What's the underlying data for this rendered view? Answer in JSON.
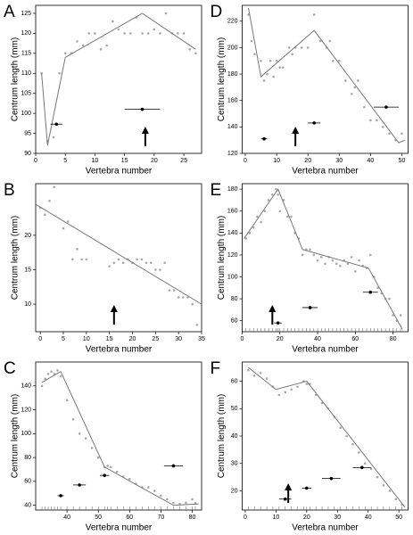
{
  "chart_data": [
    {
      "type": "segmented",
      "panel": "A",
      "xlabel": "Vertebra number",
      "ylabel": "Centrum length (mm)",
      "xlim": [
        0,
        28
      ],
      "xticks": [
        0,
        5,
        10,
        15,
        20,
        25
      ],
      "ylim": [
        90,
        127
      ],
      "yticks": [
        90,
        95,
        100,
        105,
        110,
        115,
        120,
        125
      ],
      "point_color": "#a8a8a8",
      "line_color": "#777777",
      "rug": false,
      "points": {
        "x": [
          1,
          2,
          3,
          4,
          5,
          6,
          7,
          8,
          9,
          10,
          11,
          12,
          13,
          14,
          15,
          16,
          17,
          18,
          19,
          20,
          21,
          22,
          23,
          24,
          25,
          26,
          27
        ],
        "y": [
          110,
          93,
          94,
          110,
          115,
          115,
          118,
          117,
          120,
          120,
          116,
          117,
          123,
          121,
          120,
          120,
          124,
          120,
          120,
          121,
          120,
          125,
          120,
          120,
          120,
          116,
          115
        ]
      },
      "fit": {
        "x": [
          1,
          2,
          5,
          18,
          27
        ],
        "y": [
          110,
          92,
          114,
          125,
          116
        ]
      },
      "breakpoints": [
        {
          "x": 3.5,
          "y": 97.3,
          "err": 1
        },
        {
          "x": 18,
          "y": 101,
          "err": 3
        }
      ],
      "arrow_x": 18.5
    },
    {
      "type": "segmented",
      "panel": "D",
      "xlabel": "Vertebra number",
      "ylabel": "Centrum length (mm)",
      "xlim": [
        -1,
        52
      ],
      "xticks": [
        0,
        10,
        20,
        30,
        40,
        50
      ],
      "ylim": [
        120,
        232
      ],
      "yticks": [
        120,
        140,
        160,
        180,
        200,
        220
      ],
      "point_color": "#a8a8a8",
      "line_color": "#777777",
      "rug": false,
      "points": {
        "x": [
          1,
          2,
          3,
          5,
          6,
          7,
          8,
          9,
          10,
          11,
          12,
          14,
          15,
          16,
          18,
          20,
          22,
          24,
          26,
          27,
          28,
          30,
          32,
          34,
          35,
          36,
          38,
          40,
          42,
          44,
          46,
          48,
          50
        ],
        "y": [
          225,
          205,
          195,
          190,
          175,
          180,
          190,
          178,
          190,
          185,
          185,
          200,
          195,
          200,
          200,
          200,
          225,
          205,
          200,
          205,
          190,
          190,
          175,
          165,
          170,
          175,
          155,
          145,
          145,
          140,
          135,
          130,
          135
        ]
      },
      "fit": {
        "x": [
          1,
          5,
          22,
          49,
          51
        ],
        "y": [
          230,
          178,
          213,
          128,
          130
        ]
      },
      "breakpoints": [
        {
          "x": 6,
          "y": 131,
          "err": 1
        },
        {
          "x": 22,
          "y": 143,
          "err": 2
        },
        {
          "x": 45,
          "y": 155,
          "err": 4
        }
      ],
      "arrow_x": 16
    },
    {
      "type": "segmented",
      "panel": "B",
      "xlabel": "Vertebra number",
      "ylabel": "Centrum length (mm)",
      "xlim": [
        -1,
        35
      ],
      "xticks": [
        0,
        5,
        10,
        15,
        20,
        25,
        30,
        35
      ],
      "ylim": [
        6,
        27.5
      ],
      "yticks": [
        10,
        15,
        20
      ],
      "point_color": "#a8a8a8",
      "line_color": "#777777",
      "rug": false,
      "points": {
        "x": [
          0,
          1,
          2,
          3,
          5,
          6,
          7,
          8,
          9,
          10,
          15,
          16,
          17,
          18,
          19,
          20,
          21,
          22,
          23,
          24,
          25,
          26,
          27,
          28,
          29,
          30,
          31,
          32,
          33,
          34
        ],
        "y": [
          24,
          23,
          25,
          27,
          21,
          22,
          16.5,
          18,
          16.5,
          16.5,
          15.5,
          16,
          16.5,
          16,
          16.5,
          16,
          16.5,
          16.5,
          16,
          16,
          15,
          15,
          16,
          12,
          12,
          11,
          11,
          11,
          10,
          7
        ]
      },
      "fit": {
        "x": [
          -1,
          35
        ],
        "y": [
          24.5,
          10
        ]
      },
      "breakpoints": [],
      "arrow_x": 16
    },
    {
      "type": "segmented",
      "panel": "E",
      "xlabel": "Vertebra number",
      "ylabel": "Centrum length (mm)",
      "xlim": [
        0,
        88
      ],
      "xticks": [
        0,
        20,
        40,
        60,
        80
      ],
      "ylim": [
        50,
        185
      ],
      "yticks": [
        60,
        80,
        100,
        120,
        140,
        160,
        180
      ],
      "point_color": "#a8a8a8",
      "line_color": "#777777",
      "rug": true,
      "points": {
        "x": [
          2,
          4,
          6,
          8,
          10,
          12,
          14,
          16,
          18,
          19,
          20,
          22,
          24,
          26,
          28,
          30,
          32,
          34,
          36,
          38,
          40,
          42,
          44,
          46,
          48,
          50,
          52,
          54,
          56,
          58,
          60,
          62,
          64,
          66,
          68,
          70,
          72,
          74,
          76,
          78,
          80,
          82,
          84
        ],
        "y": [
          135,
          140,
          145,
          155,
          150,
          160,
          170,
          175,
          180,
          175,
          160,
          170,
          155,
          155,
          140,
          135,
          120,
          125,
          125,
          120,
          115,
          118,
          112,
          118,
          115,
          112,
          110,
          115,
          112,
          118,
          105,
          115,
          110,
          108,
          120,
          100,
          90,
          85,
          80,
          80,
          65,
          60,
          65
        ]
      },
      "fit": {
        "x": [
          1,
          19,
          32,
          67,
          85
        ],
        "y": [
          135,
          180,
          125,
          108,
          52
        ]
      },
      "breakpoints": [
        {
          "x": 19,
          "y": 58,
          "err": 2
        },
        {
          "x": 36,
          "y": 72,
          "err": 4
        },
        {
          "x": 68,
          "y": 86,
          "err": 4
        }
      ],
      "arrow_x": 16
    },
    {
      "type": "segmented",
      "panel": "C",
      "xlabel": "Vertebra number",
      "ylabel": "Centrum length (mm)",
      "xlim": [
        30,
        83
      ],
      "xticks": [
        40,
        50,
        60,
        70,
        80
      ],
      "ylim": [
        36,
        160
      ],
      "yticks": [
        40,
        60,
        80,
        100,
        120,
        140
      ],
      "point_color": "#a8a8a8",
      "line_color": "#777777",
      "rug": true,
      "points": {
        "x": [
          32,
          33,
          34,
          35,
          36,
          37,
          38,
          40,
          42,
          44,
          46,
          48,
          50,
          52,
          53,
          54,
          56,
          58,
          60,
          62,
          64,
          66,
          68,
          70,
          72,
          74,
          76,
          78,
          80,
          81
        ],
        "y": [
          140,
          146,
          150,
          152,
          150,
          153,
          148,
          128,
          112,
          100,
          96,
          88,
          80,
          72,
          73,
          72,
          68,
          64,
          62,
          58,
          55,
          55,
          52,
          48,
          45,
          42,
          41,
          42,
          45,
          42
        ]
      },
      "fit": {
        "x": [
          32,
          38,
          52,
          74,
          82
        ],
        "y": [
          143,
          152,
          72,
          40,
          41
        ]
      },
      "breakpoints": [
        {
          "x": 38,
          "y": 48,
          "err": 1
        },
        {
          "x": 44,
          "y": 57,
          "err": 2
        },
        {
          "x": 52,
          "y": 65,
          "err": 1.5
        },
        {
          "x": 74,
          "y": 73,
          "err": 3
        }
      ]
    },
    {
      "type": "segmented",
      "panel": "F",
      "xlabel": "Vertebra number",
      "ylabel": "Centrum length (mm)",
      "xlim": [
        -1,
        53
      ],
      "xticks": [
        0,
        10,
        20,
        30,
        40,
        50
      ],
      "ylim": [
        13,
        67
      ],
      "yticks": [
        20,
        30,
        40,
        50,
        60
      ],
      "point_color": "#a8a8a8",
      "line_color": "#777777",
      "rug": true,
      "points": {
        "x": [
          1,
          3,
          5,
          7,
          9,
          11,
          13,
          15,
          17,
          19,
          20,
          21,
          23,
          25,
          27,
          29,
          31,
          33,
          35,
          37,
          39,
          41,
          43,
          45,
          47,
          49,
          51
        ],
        "y": [
          64,
          62,
          63,
          61,
          58,
          55,
          56,
          57,
          58,
          60,
          59,
          59,
          55,
          52,
          50,
          47,
          43,
          40,
          37,
          34,
          30,
          28,
          25,
          22,
          20,
          17,
          15
        ]
      },
      "fit": {
        "x": [
          1,
          10,
          20,
          52
        ],
        "y": [
          65,
          57,
          60,
          14
        ]
      },
      "breakpoints": [
        {
          "x": 13,
          "y": 17,
          "err": 2
        },
        {
          "x": 20,
          "y": 21,
          "err": 1.5
        },
        {
          "x": 28,
          "y": 24.5,
          "err": 3
        },
        {
          "x": 38,
          "y": 28.5,
          "err": 3
        }
      ],
      "arrow_x": 14
    }
  ]
}
